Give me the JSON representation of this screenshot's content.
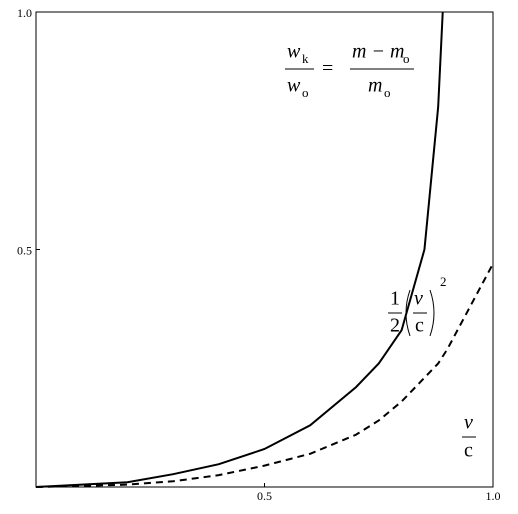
{
  "chart_data": {
    "type": "line",
    "x": [
      0,
      0.2,
      0.3,
      0.4,
      0.5,
      0.6,
      0.7,
      0.75,
      0.8,
      0.85,
      0.88,
      0.89,
      0.9,
      1.0
    ],
    "series": [
      {
        "color": "#000000",
        "dash": false,
        "values": [
          0,
          0.01,
          0.027,
          0.048,
          0.08,
          0.13,
          0.21,
          0.26,
          0.33,
          0.5,
          0.8,
          1.0,
          null,
          null
        ]
      },
      {
        "color": "#000000",
        "dash": true,
        "values": [
          0,
          0.005,
          0.012,
          0.025,
          0.045,
          0.07,
          0.11,
          0.14,
          0.18,
          0.23,
          0.26,
          0.275,
          0.29,
          0.47
        ]
      }
    ],
    "xlim": [
      0,
      1
    ],
    "ylim": [
      0,
      1
    ],
    "xticks": [
      0.5,
      {
        "value": 1,
        "label": "1.0"
      }
    ],
    "yticks": [
      0.5,
      {
        "value": 1,
        "label": "1.0"
      }
    ],
    "annotations": {
      "relativistic": {
        "num_w": "w",
        "num_sub": "k",
        "den_w": "w",
        "den_sub": "o",
        "eq": "=",
        "rhs_num": "m − m",
        "rhs_num_sub": "o",
        "rhs_den": "m",
        "rhs_den_sub": "o"
      },
      "classical": {
        "half_num": "1",
        "half_den": "2",
        "v": "v",
        "c": "c",
        "power": "2"
      },
      "axis_label": {
        "v": "v",
        "c": "c"
      }
    }
  }
}
